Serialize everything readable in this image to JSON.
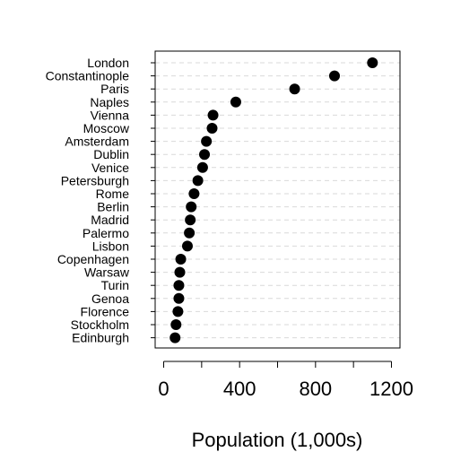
{
  "chart_data": {
    "type": "scatter",
    "subtype": "dot-plot",
    "title": "",
    "xlabel": "Population (1,000s)",
    "ylabel": "",
    "xlim": [
      -45,
      1245
    ],
    "xticks": [
      0,
      400,
      800,
      1200
    ],
    "grid": "horizontal dashed",
    "legend": "none",
    "colors": {
      "point": "#000000",
      "grid": "#d9d9d9",
      "axis": "#000000"
    },
    "categories": [
      "London",
      "Constantinople",
      "Paris",
      "Naples",
      "Vienna",
      "Moscow",
      "Amsterdam",
      "Dublin",
      "Venice",
      "Petersburgh",
      "Rome",
      "Berlin",
      "Madrid",
      "Palermo",
      "Lisbon",
      "Copenhagen",
      "Warsaw",
      "Turin",
      "Genoa",
      "Florence",
      "Stockholm",
      "Edinburgh"
    ],
    "values": [
      1100,
      900,
      690,
      380,
      260,
      255,
      225,
      215,
      205,
      180,
      160,
      145,
      140,
      135,
      125,
      90,
      85,
      80,
      80,
      75,
      65,
      60
    ]
  }
}
